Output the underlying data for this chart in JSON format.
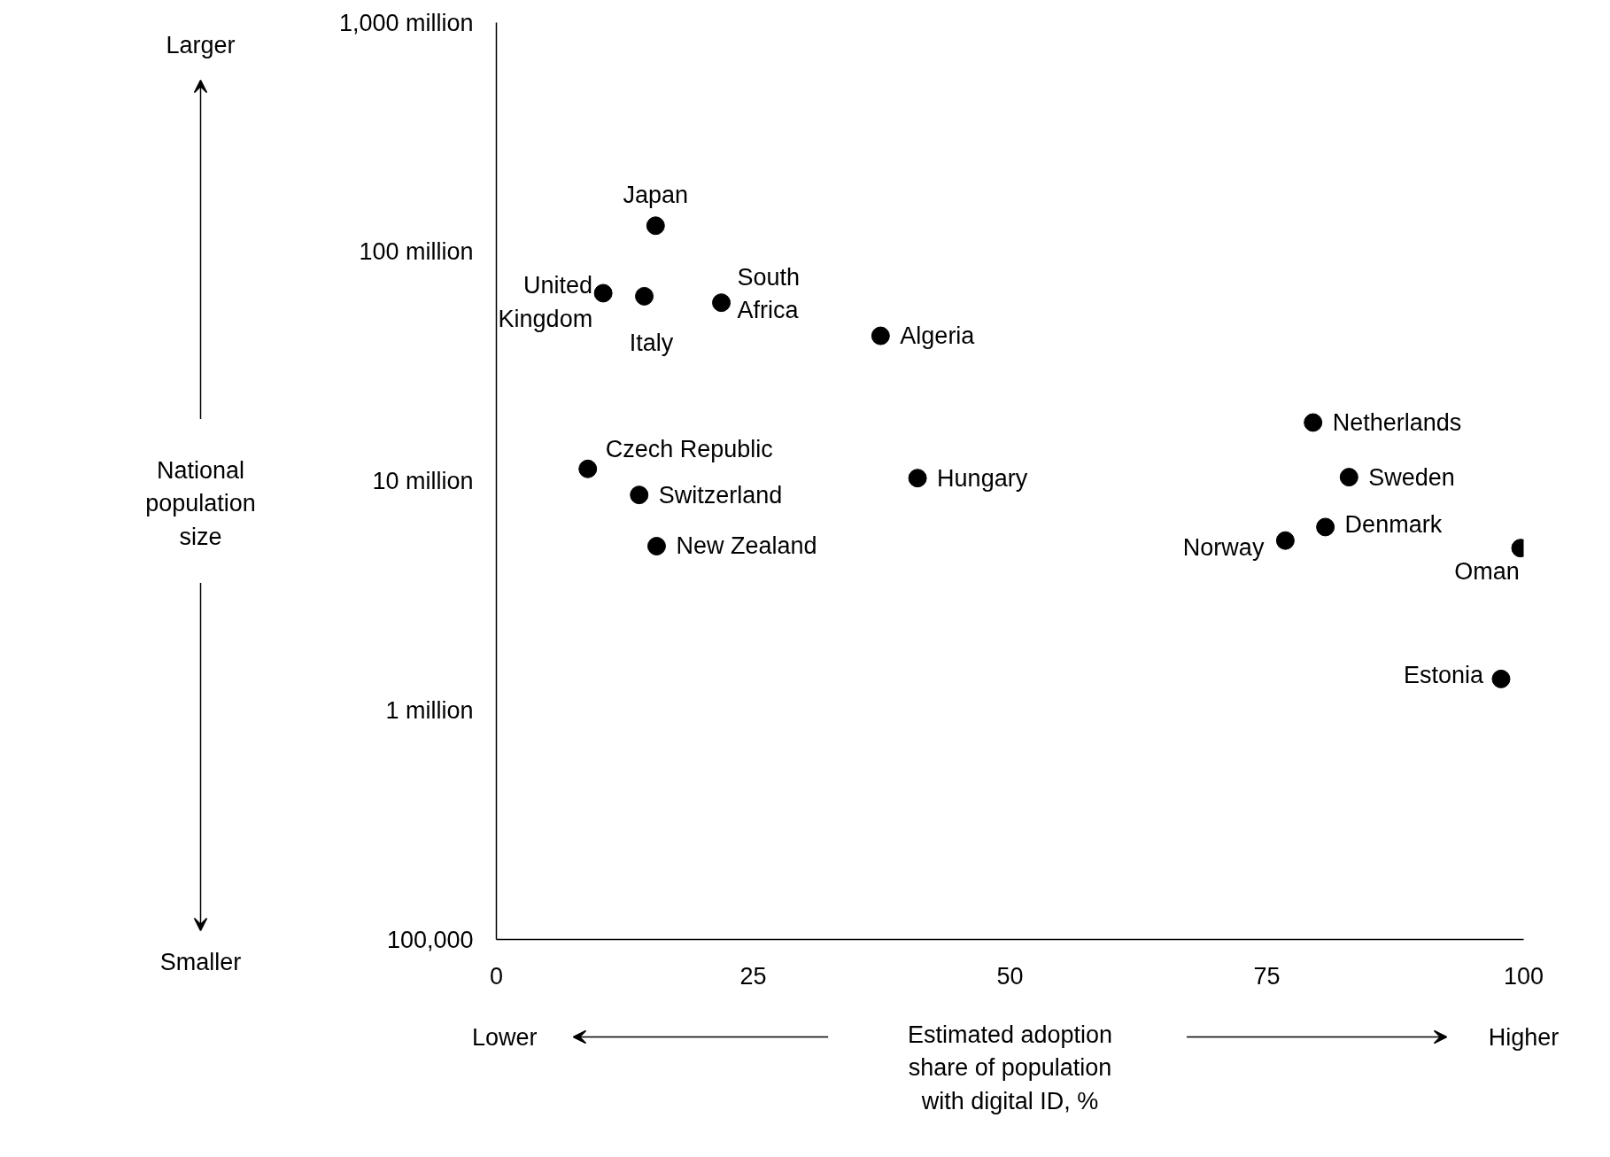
{
  "chart_data": {
    "type": "scatter",
    "xlabel": "Estimated adoption share of population with digital ID, %",
    "x": [
      15.5,
      10.4,
      14.4,
      21.9,
      37.4,
      79.5,
      8.9,
      41.0,
      83.0,
      13.9,
      80.7,
      76.8,
      15.6,
      99.7,
      97.8
    ],
    "series": [
      {
        "color": "#000000",
        "values": [
          130000000,
          66000000,
          64000000,
          60000000,
          43000000,
          18000000,
          11300000,
          10300000,
          10400000,
          8700000,
          6300000,
          5500000,
          5200000,
          5100000,
          1370000
        ]
      }
    ],
    "xlim": [
      0,
      100
    ],
    "xticks": [
      0,
      25,
      50,
      75,
      100
    ],
    "ylim": [
      100000,
      1000000000
    ],
    "yticks": [
      {
        "value": 100000,
        "label": "100,000"
      },
      {
        "value": 1000000,
        "label": "1 million"
      },
      {
        "value": 10000000,
        "label": "10 million"
      },
      {
        "value": 100000000,
        "label": "100 million"
      },
      {
        "value": 1000000000,
        "label": "1,000 million"
      }
    ],
    "log": "y",
    "grid": false,
    "marker": "circle",
    "annotations": [
      {
        "text": "Japan",
        "x": 15.5,
        "y": 130000000
      },
      {
        "text": "United\nKingdom",
        "x": 10.4,
        "y": 66000000
      },
      {
        "text": "Italy",
        "x": 14.4,
        "y": 64000000
      },
      {
        "text": "South\nAfrica",
        "x": 21.9,
        "y": 60000000
      },
      {
        "text": "Algeria",
        "x": 37.4,
        "y": 43000000
      },
      {
        "text": "Netherlands",
        "x": 79.5,
        "y": 18000000
      },
      {
        "text": "Czech Republic",
        "x": 8.9,
        "y": 11300000
      },
      {
        "text": "Hungary",
        "x": 41.0,
        "y": 10300000
      },
      {
        "text": "Sweden",
        "x": 83.0,
        "y": 10400000
      },
      {
        "text": "Switzerland",
        "x": 13.9,
        "y": 8700000
      },
      {
        "text": "Denmark",
        "x": 80.7,
        "y": 6300000
      },
      {
        "text": "Norway",
        "x": 76.8,
        "y": 5500000
      },
      {
        "text": "New Zealand",
        "x": 15.6,
        "y": 5200000
      },
      {
        "text": "Oman",
        "x": 99.7,
        "y": 5100000
      },
      {
        "text": "Estonia",
        "x": 97.8,
        "y": 1370000
      },
      "Larger",
      "Smaller",
      "Lower",
      "Higher",
      "National population size"
    ]
  }
}
